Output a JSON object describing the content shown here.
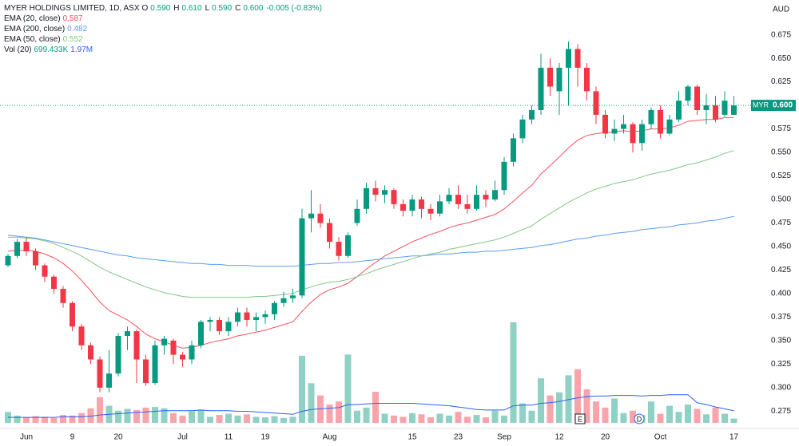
{
  "chart_data": {
    "type": "candlestick",
    "title": "MYER HOLDINGS LIMITED, 1D, ASX",
    "ohlc_readout": [
      {
        "key": "O",
        "label": "0.590"
      },
      {
        "key": "H",
        "label": "0.610"
      },
      {
        "key": "L",
        "label": "0.590"
      },
      {
        "key": "C",
        "label": "0.600"
      }
    ],
    "change_label": "-0.005 (-0.83%)",
    "currency": "AUD",
    "price_tag": {
      "symbol": "MYR",
      "label": "0.600"
    },
    "up_color": "#089981",
    "down_color": "#f23645",
    "categories": [
      null,
      null,
      "Jun",
      null,
      null,
      null,
      null,
      "9",
      null,
      null,
      null,
      null,
      "20",
      null,
      null,
      null,
      null,
      null,
      null,
      "Jul",
      null,
      null,
      null,
      null,
      "11",
      null,
      null,
      null,
      "19",
      null,
      null,
      null,
      null,
      null,
      null,
      "Aug",
      null,
      null,
      null,
      null,
      null,
      null,
      null,
      null,
      "15",
      null,
      null,
      null,
      null,
      "23",
      null,
      null,
      null,
      null,
      "Sep",
      null,
      null,
      null,
      null,
      null,
      "12",
      null,
      null,
      null,
      null,
      "20",
      null,
      null,
      null,
      null,
      null,
      "Oct",
      null,
      null,
      null,
      null,
      null,
      null,
      null,
      "17"
    ],
    "open": [
      0.43,
      0.44,
      0.455,
      0.445,
      0.43,
      0.418,
      0.405,
      0.39,
      0.365,
      0.345,
      0.33,
      0.3,
      0.315,
      0.355,
      0.36,
      0.33,
      0.305,
      0.345,
      0.35,
      0.335,
      0.33,
      0.345,
      0.37,
      0.372,
      0.36,
      0.37,
      0.38,
      0.372,
      0.375,
      0.378,
      0.39,
      0.395,
      0.398,
      0.48,
      0.485,
      0.475,
      0.455,
      0.44,
      0.475,
      0.49,
      0.512,
      0.505,
      0.51,
      0.495,
      0.488,
      0.5,
      0.49,
      0.485,
      0.498,
      0.505,
      0.495,
      0.49,
      0.505,
      0.5,
      0.51,
      0.54,
      0.565,
      0.585,
      0.595,
      0.64,
      0.615,
      0.64,
      0.66,
      0.64,
      0.615,
      0.59,
      0.57,
      0.575,
      0.58,
      0.56,
      0.58,
      0.595,
      0.57,
      0.585,
      0.605,
      0.62,
      0.595,
      0.6,
      0.59,
      0.59
    ],
    "high": [
      0.442,
      0.458,
      0.46,
      0.448,
      0.432,
      0.42,
      0.408,
      0.392,
      0.368,
      0.348,
      0.333,
      0.34,
      0.358,
      0.365,
      0.362,
      0.335,
      0.35,
      0.355,
      0.352,
      0.338,
      0.35,
      0.372,
      0.375,
      0.375,
      0.375,
      0.385,
      0.385,
      0.38,
      0.382,
      0.392,
      0.402,
      0.405,
      0.49,
      0.51,
      0.495,
      0.48,
      0.46,
      0.465,
      0.5,
      0.518,
      0.52,
      0.515,
      0.512,
      0.5,
      0.505,
      0.503,
      0.495,
      0.505,
      0.512,
      0.515,
      0.505,
      0.515,
      0.51,
      0.52,
      0.545,
      0.57,
      0.59,
      0.6,
      0.655,
      0.65,
      0.645,
      0.668,
      0.665,
      0.645,
      0.62,
      0.595,
      0.585,
      0.59,
      0.582,
      0.585,
      0.598,
      0.6,
      0.59,
      0.615,
      0.622,
      0.622,
      0.612,
      0.61,
      0.615,
      0.61
    ],
    "low": [
      0.428,
      0.438,
      0.44,
      0.425,
      0.412,
      0.4,
      0.385,
      0.36,
      0.34,
      0.325,
      0.295,
      0.295,
      0.312,
      0.34,
      0.305,
      0.302,
      0.303,
      0.335,
      0.325,
      0.322,
      0.325,
      0.342,
      0.36,
      0.356,
      0.355,
      0.365,
      0.365,
      0.36,
      0.368,
      0.372,
      0.386,
      0.39,
      0.395,
      0.465,
      0.47,
      0.448,
      0.435,
      0.438,
      0.472,
      0.485,
      0.498,
      0.496,
      0.49,
      0.482,
      0.482,
      0.48,
      0.478,
      0.482,
      0.495,
      0.49,
      0.485,
      0.488,
      0.492,
      0.498,
      0.505,
      0.535,
      0.56,
      0.58,
      0.59,
      0.61,
      0.59,
      0.6,
      0.62,
      0.605,
      0.58,
      0.565,
      0.562,
      0.57,
      0.55,
      0.552,
      0.575,
      0.565,
      0.568,
      0.582,
      0.6,
      0.59,
      0.58,
      0.582,
      0.588,
      0.59
    ],
    "close": [
      0.44,
      0.455,
      0.445,
      0.43,
      0.418,
      0.405,
      0.39,
      0.365,
      0.345,
      0.33,
      0.3,
      0.315,
      0.355,
      0.36,
      0.33,
      0.305,
      0.345,
      0.352,
      0.335,
      0.33,
      0.345,
      0.37,
      0.372,
      0.36,
      0.37,
      0.38,
      0.372,
      0.375,
      0.378,
      0.39,
      0.395,
      0.398,
      0.48,
      0.485,
      0.475,
      0.455,
      0.44,
      0.462,
      0.49,
      0.512,
      0.505,
      0.51,
      0.495,
      0.488,
      0.5,
      0.49,
      0.485,
      0.498,
      0.505,
      0.495,
      0.49,
      0.505,
      0.5,
      0.51,
      0.54,
      0.565,
      0.585,
      0.595,
      0.64,
      0.62,
      0.64,
      0.66,
      0.64,
      0.615,
      0.59,
      0.57,
      0.575,
      0.58,
      0.56,
      0.58,
      0.595,
      0.57,
      0.585,
      0.605,
      0.62,
      0.595,
      0.6,
      0.585,
      0.605,
      0.6
    ],
    "series": [
      {
        "name": "EMA (20, close)",
        "color": "#f7525f",
        "value_label": "0.587",
        "values": [
          0.445,
          0.446,
          0.446,
          0.445,
          0.442,
          0.438,
          0.432,
          0.424,
          0.414,
          0.403,
          0.391,
          0.382,
          0.377,
          0.372,
          0.365,
          0.357,
          0.352,
          0.349,
          0.345,
          0.342,
          0.343,
          0.345,
          0.348,
          0.35,
          0.352,
          0.355,
          0.357,
          0.359,
          0.361,
          0.364,
          0.367,
          0.37,
          0.381,
          0.391,
          0.399,
          0.404,
          0.407,
          0.411,
          0.418,
          0.426,
          0.433,
          0.44,
          0.445,
          0.45,
          0.455,
          0.459,
          0.463,
          0.466,
          0.47,
          0.473,
          0.475,
          0.478,
          0.481,
          0.484,
          0.49,
          0.498,
          0.507,
          0.515,
          0.527,
          0.536,
          0.545,
          0.555,
          0.563,
          0.568,
          0.57,
          0.571,
          0.572,
          0.573,
          0.572,
          0.573,
          0.575,
          0.575,
          0.576,
          0.579,
          0.583,
          0.584,
          0.585,
          0.585,
          0.587,
          0.587
        ]
      },
      {
        "name": "EMA (200, close)",
        "color": "#5b9cf6",
        "value_label": "0.482",
        "values": [
          0.462,
          0.461,
          0.46,
          0.459,
          0.457,
          0.455,
          0.453,
          0.451,
          0.449,
          0.447,
          0.445,
          0.443,
          0.441,
          0.44,
          0.438,
          0.437,
          0.436,
          0.435,
          0.434,
          0.433,
          0.432,
          0.432,
          0.431,
          0.431,
          0.43,
          0.43,
          0.43,
          0.429,
          0.429,
          0.429,
          0.429,
          0.429,
          0.43,
          0.431,
          0.432,
          0.432,
          0.433,
          0.433,
          0.434,
          0.435,
          0.436,
          0.437,
          0.438,
          0.439,
          0.44,
          0.44,
          0.441,
          0.442,
          0.442,
          0.443,
          0.444,
          0.444,
          0.445,
          0.445,
          0.446,
          0.447,
          0.448,
          0.449,
          0.451,
          0.452,
          0.454,
          0.456,
          0.458,
          0.459,
          0.461,
          0.462,
          0.464,
          0.465,
          0.466,
          0.468,
          0.469,
          0.47,
          0.471,
          0.473,
          0.474,
          0.475,
          0.477,
          0.478,
          0.48,
          0.482
        ]
      },
      {
        "name": "EMA (50, close)",
        "color": "#81c784",
        "value_label": "0.552",
        "values": [
          0.46,
          0.46,
          0.459,
          0.458,
          0.456,
          0.453,
          0.449,
          0.445,
          0.44,
          0.434,
          0.428,
          0.423,
          0.419,
          0.415,
          0.411,
          0.407,
          0.404,
          0.401,
          0.399,
          0.397,
          0.396,
          0.396,
          0.396,
          0.396,
          0.396,
          0.396,
          0.396,
          0.397,
          0.397,
          0.398,
          0.399,
          0.4,
          0.404,
          0.407,
          0.41,
          0.412,
          0.413,
          0.415,
          0.418,
          0.421,
          0.425,
          0.428,
          0.431,
          0.434,
          0.437,
          0.44,
          0.442,
          0.444,
          0.447,
          0.449,
          0.451,
          0.453,
          0.455,
          0.457,
          0.46,
          0.464,
          0.468,
          0.472,
          0.479,
          0.485,
          0.491,
          0.497,
          0.502,
          0.507,
          0.511,
          0.514,
          0.517,
          0.519,
          0.521,
          0.524,
          0.527,
          0.529,
          0.531,
          0.534,
          0.537,
          0.539,
          0.542,
          0.545,
          0.549,
          0.552
        ]
      }
    ],
    "volume": {
      "name": "Vol (20)",
      "value_label": "699.433K",
      "ma_value_label": "1.97M",
      "ma_color": "#2962ff",
      "values": [
        1800000,
        1200000,
        900000,
        1100000,
        1000000,
        800000,
        1300000,
        1200000,
        1600000,
        2400000,
        4200000,
        2800000,
        2000000,
        2300000,
        2100000,
        2500000,
        2600000,
        2400000,
        1600000,
        1200000,
        1900000,
        2200000,
        1000000,
        1300000,
        1500000,
        1200000,
        1400000,
        1000000,
        900000,
        1100000,
        800000,
        1000000,
        11000000,
        6500000,
        4500000,
        3000000,
        3500000,
        11200000,
        2000000,
        2500000,
        5100000,
        1500000,
        1200000,
        1000000,
        1600000,
        1400000,
        900000,
        1500000,
        1200000,
        1800000,
        1000000,
        1300000,
        900000,
        2000000,
        1200000,
        16500000,
        3200000,
        2000000,
        7300000,
        4500000,
        5000000,
        7800000,
        8800000,
        5500000,
        3500000,
        2500000,
        4000000,
        1600000,
        2000000,
        1300000,
        3500000,
        1500000,
        2800000,
        1800000,
        3000000,
        2300000,
        1400000,
        2500000,
        1500000,
        699433
      ],
      "ma_values": [
        900000,
        900000,
        900000,
        900000,
        900000,
        900000,
        1000000,
        1000000,
        1000000,
        1100000,
        1300000,
        1400000,
        1500000,
        1600000,
        1700000,
        1800000,
        1900000,
        2000000,
        2000000,
        2000000,
        2000000,
        2100000,
        2000000,
        2000000,
        2000000,
        1900000,
        1900000,
        1800000,
        1700000,
        1600000,
        1500000,
        1400000,
        1900000,
        2200000,
        2300000,
        2400000,
        2500000,
        3000000,
        3000000,
        3100000,
        3200000,
        3200000,
        3200000,
        3200000,
        3200000,
        3100000,
        3000000,
        2900000,
        2800000,
        2600000,
        2400000,
        2200000,
        2100000,
        2100000,
        2100000,
        2800000,
        2900000,
        2900000,
        3200000,
        3300000,
        3500000,
        3800000,
        4100000,
        4300000,
        4400000,
        4400000,
        4500000,
        4500000,
        4500000,
        4400000,
        4500000,
        4500000,
        4600000,
        4600000,
        4600000,
        3300000,
        3000000,
        2600000,
        2300000,
        1970000
      ],
      "ylim": [
        0,
        17000000
      ]
    },
    "event_markers": [
      {
        "label": "E"
      },
      {
        "label": "D"
      }
    ],
    "ylim": [
      0.238,
      0.712
    ],
    "yticks": [
      0.675,
      {
        "value": 0.65,
        "label": "0.650"
      },
      0.625,
      {
        "value": 0.6,
        "label": "0.600"
      },
      0.575,
      {
        "value": 0.55,
        "label": "0.550"
      },
      0.525,
      {
        "value": 0.5,
        "label": "0.500"
      },
      0.475,
      {
        "value": 0.45,
        "label": "0.450"
      },
      0.425,
      {
        "value": 0.4,
        "label": "0.400"
      },
      0.375,
      {
        "value": 0.35,
        "label": "0.350"
      },
      0.325,
      {
        "value": 0.3,
        "label": "0.300"
      },
      0.275
    ],
    "grid": false
  }
}
